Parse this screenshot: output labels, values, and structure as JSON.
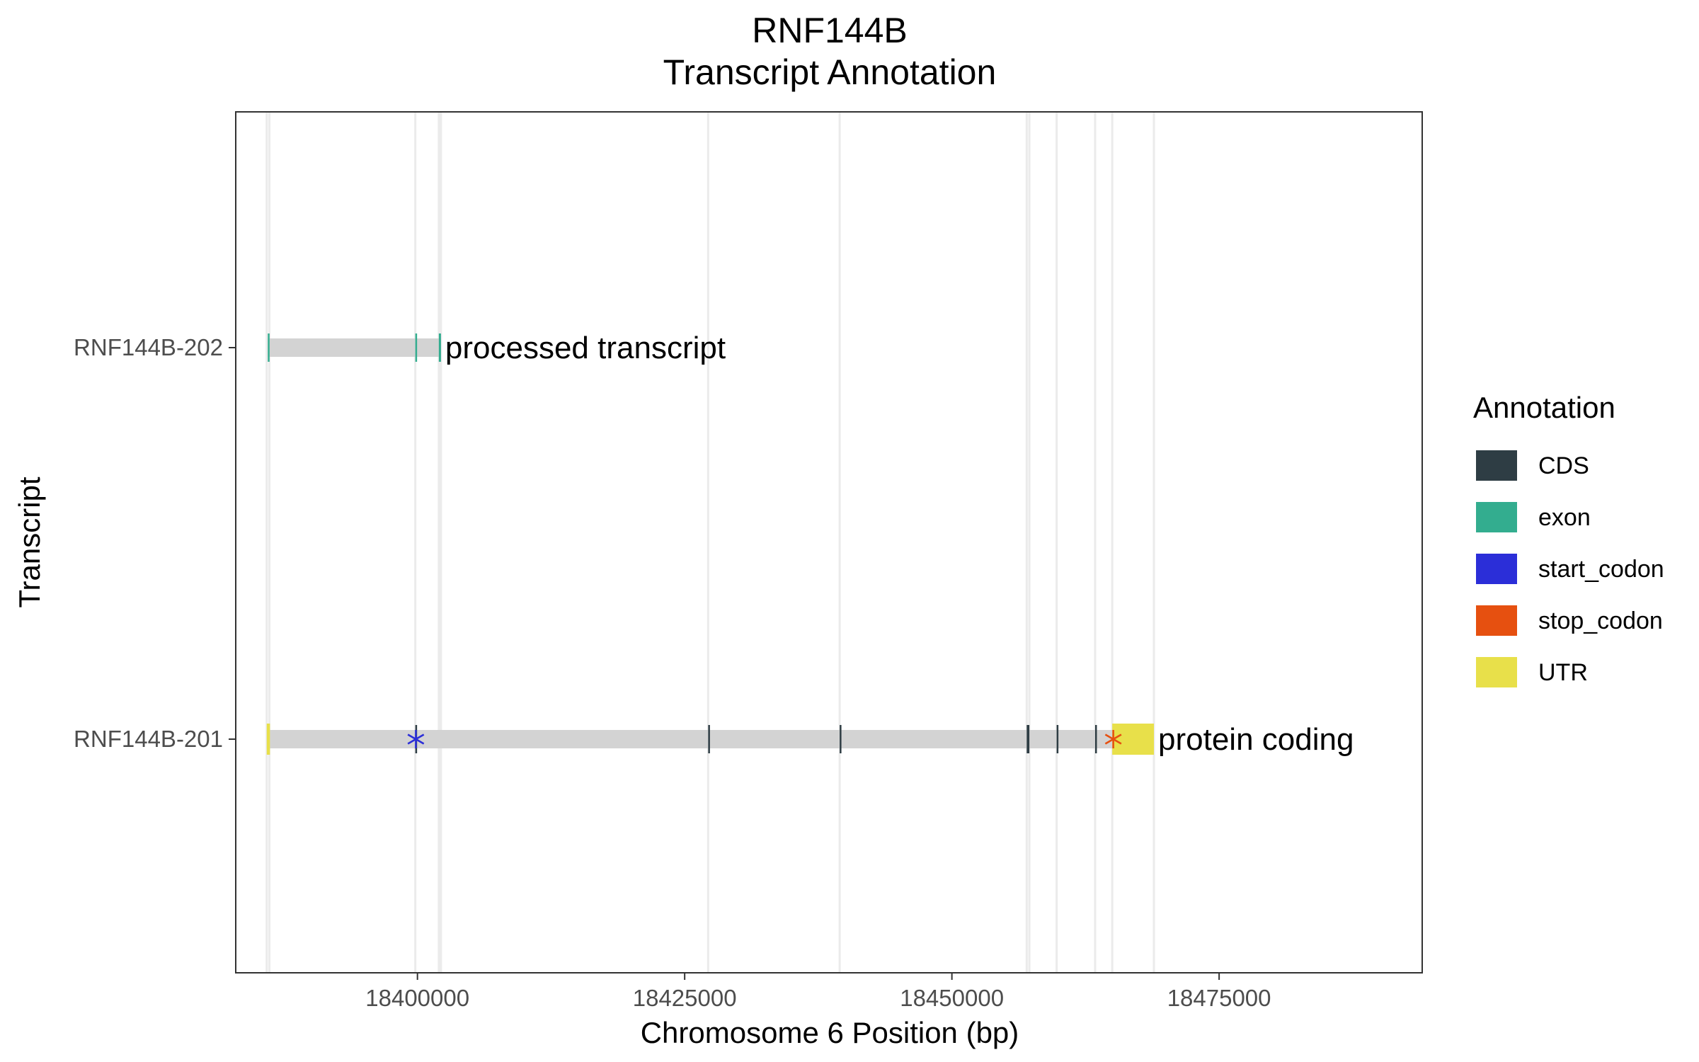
{
  "chart_data": {
    "type": "gene-annotation",
    "title": "RNF144B",
    "subtitle": "Transcript Annotation",
    "xlabel": "Chromosome 6 Position (bp)",
    "ylabel": "Transcript",
    "xlim": [
      18383000,
      18494000
    ],
    "x_ticks": [
      18400000,
      18425000,
      18450000,
      18475000
    ],
    "x_tick_labels": [
      "18400000",
      "18425000",
      "18450000",
      "18475000"
    ],
    "grid": "vertical lines at feature boundaries",
    "legend": {
      "title": "Annotation",
      "placement": "right",
      "items": [
        {
          "label": "CDS",
          "color": "#2e3d44"
        },
        {
          "label": "exon",
          "color": "#33ad8f"
        },
        {
          "label": "start_codon",
          "color": "#2b2ed8"
        },
        {
          "label": "stop_codon",
          "color": "#e65010"
        },
        {
          "label": "UTR",
          "color": "#e8e04a"
        }
      ]
    },
    "transcripts": [
      {
        "name": "RNF144B-202",
        "biotype": "processed transcript",
        "start": 18386000,
        "end": 18402200,
        "features": [
          {
            "type": "exon",
            "start": 18386000,
            "end": 18386150
          },
          {
            "type": "exon",
            "start": 18399800,
            "end": 18399950
          },
          {
            "type": "exon",
            "start": 18402000,
            "end": 18402200
          }
        ]
      },
      {
        "name": "RNF144B-201",
        "biotype": "protein coding",
        "start": 18385900,
        "end": 18468900,
        "features": [
          {
            "type": "UTR",
            "start": 18385900,
            "end": 18386200
          },
          {
            "type": "CDS",
            "start": 18399800,
            "end": 18399950
          },
          {
            "type": "CDS",
            "start": 18427200,
            "end": 18427350
          },
          {
            "type": "CDS",
            "start": 18439500,
            "end": 18439600
          },
          {
            "type": "CDS",
            "start": 18457000,
            "end": 18457250
          },
          {
            "type": "CDS",
            "start": 18459800,
            "end": 18459950
          },
          {
            "type": "CDS",
            "start": 18463400,
            "end": 18463550
          },
          {
            "type": "UTR",
            "start": 18465000,
            "end": 18468900
          },
          {
            "type": "start_codon",
            "position": 18399850
          },
          {
            "type": "stop_codon",
            "position": 18465100
          }
        ]
      }
    ]
  },
  "colors": {
    "intron": "#d3d3d3",
    "grid": "#ebebeb",
    "panel_border": "#333333",
    "CDS": "#2e3d44",
    "exon": "#33ad8f",
    "start_codon": "#2b2ed8",
    "stop_codon": "#e65010",
    "UTR": "#e8e04a"
  }
}
